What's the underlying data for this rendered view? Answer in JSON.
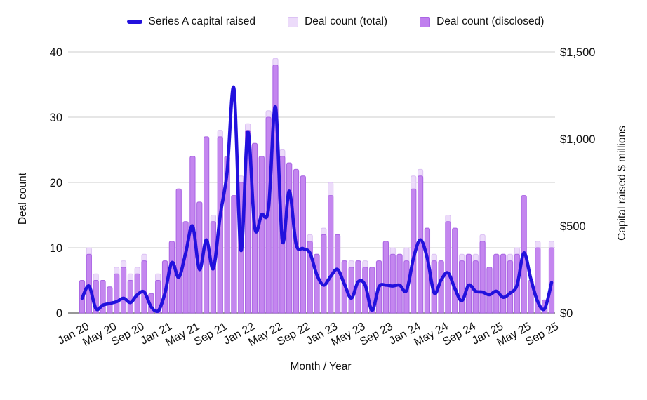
{
  "legend": {
    "series_a_label": "Series A capital raised",
    "total_label": "Deal count (total)",
    "disclosed_label": "Deal count (disclosed)"
  },
  "axes": {
    "left_title": "Deal count",
    "right_title": "Capital raised $ millions",
    "x_title": "Month / Year",
    "left_tick_labels": [
      "0",
      "10",
      "20",
      "30",
      "40"
    ],
    "left_tick_values": [
      0,
      10,
      20,
      30,
      40
    ],
    "right_tick_labels": [
      "$0",
      "$500",
      "$1,000",
      "$1,500"
    ],
    "right_tick_values": [
      0,
      500,
      1000,
      1500
    ]
  },
  "colors": {
    "line": "#2211dd",
    "total_fill": "#ecdbfa",
    "total_border": "#dcc2f4",
    "disclosed_fill": "#c07fee",
    "disclosed_border": "#aa66e4",
    "grid": "#cccccc",
    "axis_line": "#757575",
    "text": "#111111"
  },
  "chart_data": {
    "type": "bar",
    "subtype": "grouped-overlay-bars-with-line",
    "title": "",
    "xlabel": "Month / Year",
    "x_tick_every": 4,
    "grid": "horizontal-only",
    "legend_position": "top",
    "left_axis": {
      "title": "Deal count",
      "range": [
        0,
        40
      ]
    },
    "right_axis": {
      "title": "Capital raised $ millions",
      "range": [
        0,
        1500
      ]
    },
    "categories": [
      "Jan 20",
      "Feb 20",
      "Mar 20",
      "Apr 20",
      "May 20",
      "Jun 20",
      "Jul 20",
      "Aug 20",
      "Sep 20",
      "Oct 20",
      "Nov 20",
      "Dec 20",
      "Jan 21",
      "Feb 21",
      "Mar 21",
      "Apr 21",
      "May 21",
      "Jun 21",
      "Jul 21",
      "Aug 21",
      "Sep 21",
      "Oct 21",
      "Nov 21",
      "Dec 21",
      "Jan 22",
      "Feb 22",
      "Mar 22",
      "Apr 22",
      "May 22",
      "Jun 22",
      "Jul 22",
      "Aug 22",
      "Sep 22",
      "Oct 22",
      "Nov 22",
      "Dec 22",
      "Jan 23",
      "Feb 23",
      "Mar 23",
      "Apr 23",
      "May 23",
      "Jun 23",
      "Jul 23",
      "Aug 23",
      "Sep 23",
      "Oct 23",
      "Nov 23",
      "Dec 23",
      "Jan 24",
      "Feb 24",
      "Mar 24",
      "Apr 24",
      "May 24",
      "Jun 24",
      "Jul 24",
      "Aug 24",
      "Sep 24",
      "Oct 24",
      "Nov 24",
      "Dec 24",
      "Jan 25",
      "Feb 25",
      "Mar 25",
      "Apr 25",
      "May 25",
      "Jun 25",
      "Jul 25",
      "Aug 25",
      "Sep 25"
    ],
    "series": [
      {
        "name": "Deal count (total)",
        "type": "bar",
        "axis": "left",
        "values": [
          5,
          10,
          6,
          5,
          4,
          7,
          8,
          6,
          7,
          9,
          3,
          6,
          8,
          11,
          19,
          14,
          24,
          17,
          27,
          15,
          28,
          24,
          18,
          21,
          29,
          26,
          24,
          31,
          39,
          25,
          23,
          22,
          21,
          12,
          9,
          13,
          20,
          12,
          8,
          8,
          8,
          8,
          7,
          8,
          11,
          10,
          9,
          10,
          21,
          22,
          13,
          9,
          8,
          15,
          13,
          9,
          9,
          9,
          12,
          7,
          9,
          9,
          9,
          10,
          18,
          5,
          11,
          2,
          11
        ]
      },
      {
        "name": "Deal count (disclosed)",
        "type": "bar",
        "axis": "left",
        "values": [
          5,
          9,
          5,
          5,
          4,
          6,
          7,
          5,
          6,
          8,
          3,
          5,
          8,
          11,
          19,
          14,
          24,
          17,
          27,
          14,
          27,
          24,
          18,
          20,
          28,
          26,
          24,
          30,
          38,
          24,
          23,
          22,
          21,
          11,
          9,
          12,
          18,
          12,
          8,
          7,
          8,
          7,
          7,
          8,
          11,
          9,
          9,
          8,
          19,
          21,
          13,
          8,
          8,
          14,
          13,
          8,
          9,
          8,
          11,
          7,
          9,
          9,
          8,
          9,
          18,
          5,
          10,
          2,
          10
        ]
      },
      {
        "name": "Series A capital raised",
        "type": "line",
        "axis": "right",
        "unit": "$ millions",
        "values": [
          85,
          155,
          25,
          45,
          55,
          65,
          85,
          60,
          105,
          120,
          35,
          10,
          115,
          290,
          205,
          345,
          500,
          250,
          420,
          255,
          560,
          810,
          1290,
          360,
          1040,
          490,
          565,
          600,
          1185,
          415,
          700,
          395,
          370,
          345,
          220,
          160,
          210,
          250,
          165,
          85,
          180,
          160,
          15,
          150,
          160,
          155,
          160,
          130,
          315,
          420,
          315,
          115,
          190,
          230,
          140,
          70,
          160,
          125,
          120,
          105,
          125,
          90,
          115,
          160,
          345,
          195,
          65,
          25,
          175
        ]
      }
    ]
  }
}
